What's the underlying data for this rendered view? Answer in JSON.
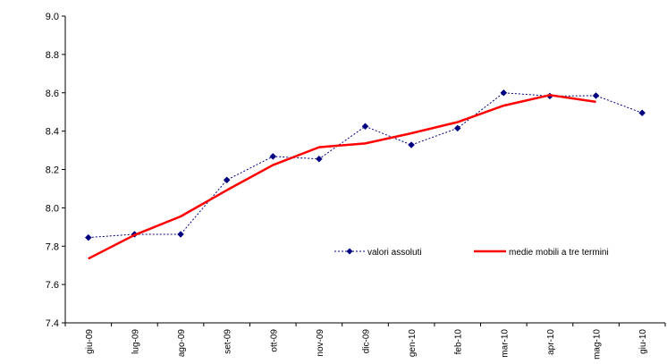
{
  "chart_data": {
    "type": "line",
    "title": "",
    "xlabel": "",
    "ylabel": "",
    "ylim": [
      7.4,
      9.0
    ],
    "yticks": [
      "7.4",
      "7.6",
      "7.8",
      "8.0",
      "8.2",
      "8.4",
      "8.6",
      "8.8",
      "9.0"
    ],
    "categories": [
      "giu-09",
      "lug-09",
      "ago-09",
      "set-09",
      "ott-09",
      "nov-09",
      "dic-09",
      "gen-10",
      "feb-10",
      "mar-10",
      "apr-10",
      "mag-10",
      "giu-10"
    ],
    "grid": false,
    "legend_position": "center-right",
    "series": [
      {
        "name": "valori assoluti",
        "style": "dotted-with-diamond-markers",
        "color": "#000080",
        "values": [
          7.845,
          7.862,
          7.862,
          8.145,
          8.268,
          8.255,
          8.425,
          8.328,
          8.415,
          8.6,
          8.583,
          8.585,
          8.495
        ]
      },
      {
        "name": "medie mobili a tre termini",
        "style": "solid-thick",
        "color": "#ff0000",
        "values": [
          7.735,
          7.858,
          7.955,
          8.092,
          8.223,
          8.316,
          8.336,
          8.389,
          8.447,
          8.533,
          8.588,
          8.553,
          null
        ]
      }
    ]
  }
}
